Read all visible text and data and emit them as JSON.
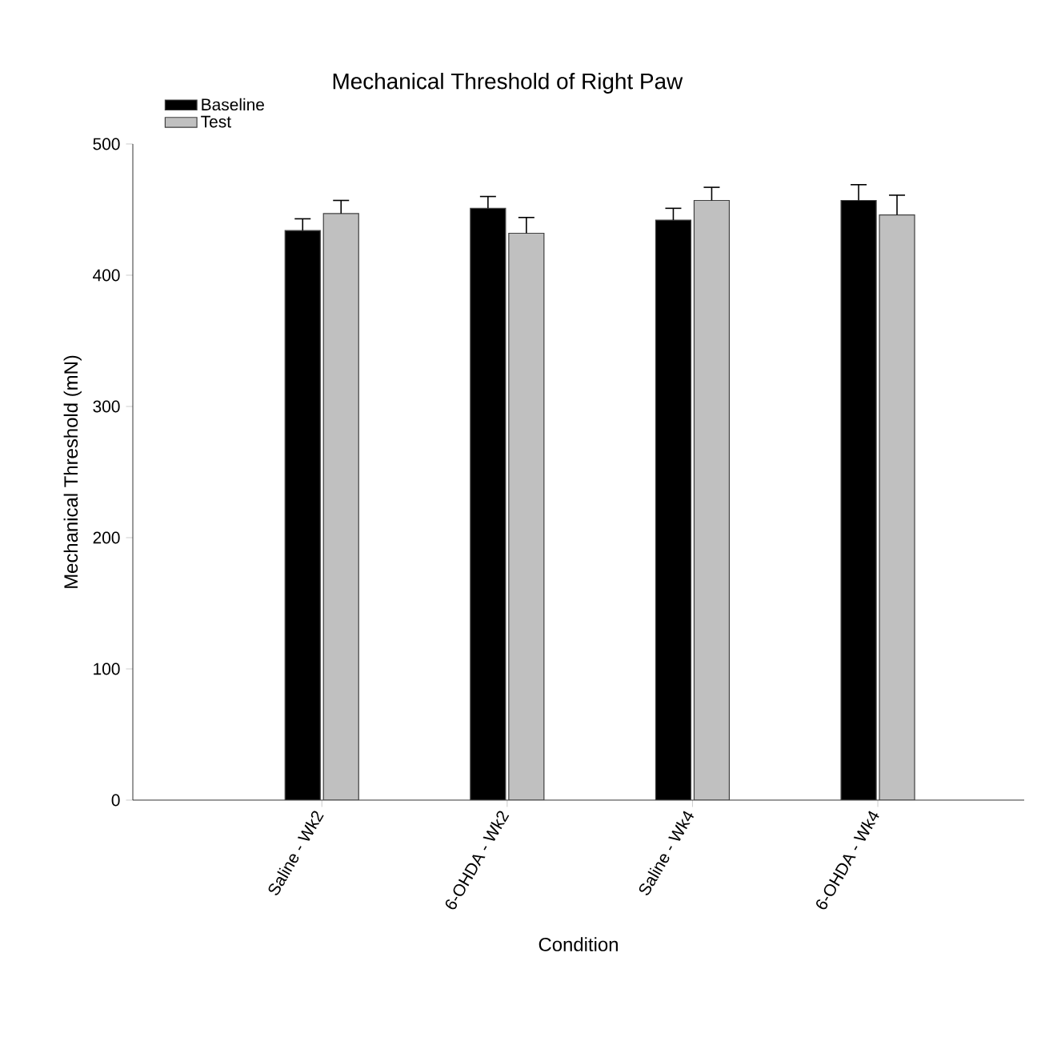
{
  "chart_data": {
    "type": "bar",
    "title": "Mechanical Threshold of Right Paw",
    "xlabel": "Condition",
    "ylabel": "Mechanical Threshold (mN)",
    "categories": [
      "Saline - Wk2",
      "6-OHDA - Wk2",
      "Saline - Wk4",
      "6-OHDA - Wk4"
    ],
    "series": [
      {
        "name": "Baseline",
        "color": "#000000",
        "values": [
          434,
          451,
          442,
          457
        ],
        "errors": [
          9,
          9,
          9,
          12
        ]
      },
      {
        "name": "Test",
        "color": "#c0c0c0",
        "values": [
          447,
          432,
          457,
          446
        ],
        "errors": [
          10,
          12,
          10,
          15
        ]
      }
    ],
    "ylim": [
      0,
      500
    ],
    "yticks": [
      0,
      100,
      200,
      300,
      400,
      500
    ],
    "grid": false,
    "legend": "top left"
  }
}
